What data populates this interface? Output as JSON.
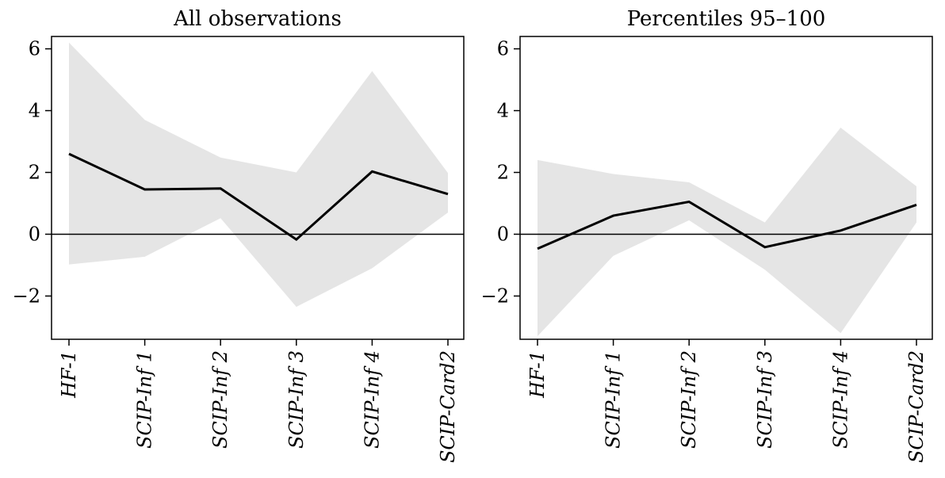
{
  "chart_data": [
    {
      "type": "line",
      "title": "All observations",
      "categories": [
        "HF-1",
        "SCIP-Inf 1",
        "SCIP-Inf 2",
        "SCIP-Inf 3",
        "SCIP-Inf 4",
        "SCIP-Card2"
      ],
      "series": [
        {
          "values": [
            2.6,
            1.45,
            1.48,
            -0.17,
            2.03,
            1.3
          ]
        }
      ],
      "band_upper": [
        6.2,
        3.7,
        2.48,
        2.0,
        5.28,
        1.98
      ],
      "band_lower": [
        -0.98,
        -0.73,
        0.52,
        -2.35,
        -1.1,
        0.7
      ],
      "yticks": [
        -2,
        0,
        2,
        4,
        6
      ],
      "ytick_labels": [
        "−2",
        "0",
        "2",
        "4",
        "6"
      ],
      "ylim": [
        -3.4,
        6.4
      ],
      "zero_line": true,
      "grid": false
    },
    {
      "type": "line",
      "title": "Percentiles 95–100",
      "categories": [
        "HF-1",
        "SCIP-Inf 1",
        "SCIP-Inf 2",
        "SCIP-Inf 3",
        "SCIP-Inf 4",
        "SCIP-Card2"
      ],
      "series": [
        {
          "values": [
            -0.47,
            0.6,
            1.05,
            -0.42,
            0.12,
            0.95
          ]
        }
      ],
      "band_upper": [
        2.4,
        1.95,
        1.68,
        0.38,
        3.45,
        1.55
      ],
      "band_lower": [
        -3.3,
        -0.7,
        0.45,
        -1.15,
        -3.2,
        0.38
      ],
      "yticks": [
        -2,
        0,
        2,
        4,
        6
      ],
      "ytick_labels": [
        "−2",
        "0",
        "2",
        "4",
        "6"
      ],
      "ylim": [
        -3.4,
        6.4
      ],
      "zero_line": true,
      "grid": false
    }
  ],
  "colors": {
    "line": "#000000",
    "band": "#e5e5e5",
    "axes": "#000000"
  }
}
